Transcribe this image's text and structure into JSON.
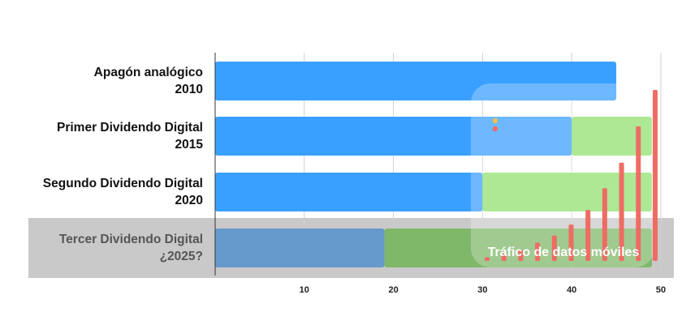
{
  "chart_data": {
    "type": "bar",
    "orientation": "horizontal",
    "stacked": true,
    "categories": [
      {
        "name": "Apagón analógico",
        "year": "2010"
      },
      {
        "name": "Primer Dividendo Digital",
        "year": "2015"
      },
      {
        "name": "Segundo Dividendo Digital",
        "year": "2020"
      },
      {
        "name": "Tercer Dividendo Digital",
        "year": "¿2025?"
      }
    ],
    "series": [
      {
        "color": "#3aa0ff",
        "values": [
          45,
          40,
          30,
          19
        ]
      },
      {
        "color": "#92e06f",
        "values": [
          0,
          9,
          19,
          30
        ]
      }
    ],
    "xlim": [
      0,
      50
    ],
    "xticks": [
      10,
      20,
      30,
      40,
      50
    ],
    "grid": true,
    "highlighted_category": 3,
    "inset": {
      "type": "bar",
      "title": "Tráfico de datos móviles",
      "bar_color": "#ee6c63",
      "values": [
        0.5,
        1,
        1.5,
        2.5,
        3.5,
        5,
        7,
        10,
        13.5,
        18.5,
        23.5
      ],
      "legend_marker_colors": [
        "#f2c14e",
        "#ee6c63"
      ]
    }
  }
}
